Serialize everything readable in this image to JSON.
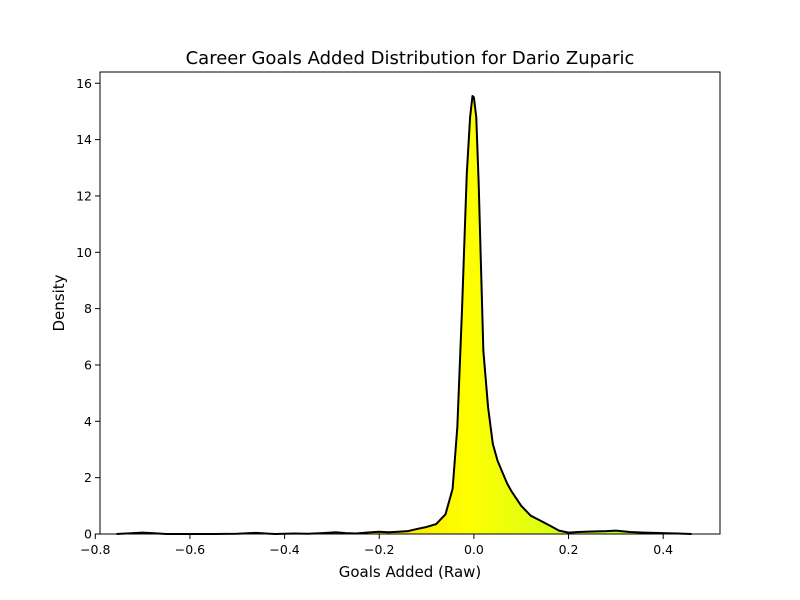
{
  "chart_data": {
    "type": "area",
    "title": "Career Goals Added Distribution for Dario Zuparic",
    "xlabel": "Goals Added (Raw)",
    "ylabel": "Density",
    "xlim": [
      -0.79,
      0.52
    ],
    "ylim": [
      0,
      16.4
    ],
    "grid": false,
    "x_ticks": [
      -0.8,
      -0.6,
      -0.4,
      -0.2,
      0.0,
      0.2,
      0.4
    ],
    "x_tick_labels": [
      "−0.8",
      "−0.6",
      "−0.4",
      "−0.2",
      "0.0",
      "0.2",
      "0.4"
    ],
    "y_ticks": [
      0,
      2,
      4,
      6,
      8,
      10,
      12,
      14,
      16
    ],
    "y_tick_labels": [
      "0",
      "2",
      "4",
      "6",
      "8",
      "10",
      "12",
      "14",
      "16"
    ],
    "fill_gradient": {
      "low": "#e8760b",
      "mid": "#ffff00",
      "high": "#9aff3a"
    },
    "line_color": "#000000",
    "series": [
      {
        "x": [
          -0.755,
          -0.72,
          -0.7,
          -0.68,
          -0.65,
          -0.6,
          -0.55,
          -0.5,
          -0.46,
          -0.44,
          -0.42,
          -0.38,
          -0.35,
          -0.32,
          -0.29,
          -0.27,
          -0.25,
          -0.22,
          -0.2,
          -0.18,
          -0.16,
          -0.14,
          -0.12,
          -0.1,
          -0.08,
          -0.06,
          -0.045,
          -0.035,
          -0.025,
          -0.015,
          -0.008,
          -0.003,
          0.0,
          0.005,
          0.01,
          0.015,
          0.02,
          0.03,
          0.04,
          0.05,
          0.06,
          0.07,
          0.08,
          0.1,
          0.12,
          0.14,
          0.16,
          0.18,
          0.2,
          0.22,
          0.25,
          0.28,
          0.3,
          0.33,
          0.36,
          0.4,
          0.43,
          0.46
        ],
        "y": [
          0.0,
          0.03,
          0.05,
          0.03,
          0.0,
          0.0,
          0.0,
          0.01,
          0.04,
          0.02,
          0.0,
          0.02,
          0.01,
          0.03,
          0.06,
          0.03,
          0.02,
          0.06,
          0.08,
          0.06,
          0.08,
          0.1,
          0.18,
          0.25,
          0.35,
          0.7,
          1.6,
          3.8,
          8.0,
          12.8,
          14.8,
          15.55,
          15.5,
          14.8,
          12.5,
          9.5,
          6.5,
          4.5,
          3.2,
          2.6,
          2.2,
          1.8,
          1.5,
          1.0,
          0.65,
          0.48,
          0.3,
          0.12,
          0.05,
          0.07,
          0.09,
          0.1,
          0.12,
          0.07,
          0.05,
          0.03,
          0.02,
          0.0
        ]
      }
    ]
  }
}
